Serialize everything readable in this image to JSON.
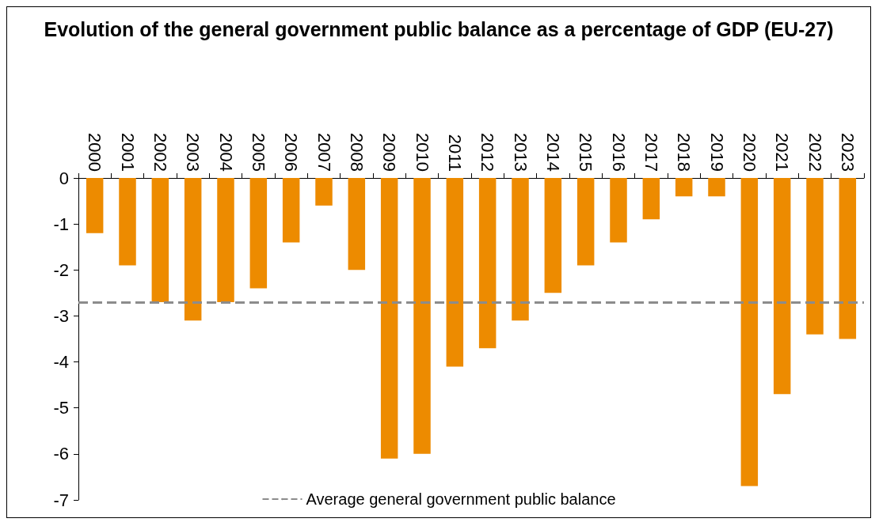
{
  "chart_data": {
    "type": "bar",
    "title": "Evolution of the general government public balance as a percentage of GDP (EU-27)",
    "categories": [
      "2000",
      "2001",
      "2002",
      "2003",
      "2004",
      "2005",
      "2006",
      "2007",
      "2008",
      "2009",
      "2010",
      "2011",
      "2012",
      "2013",
      "2014",
      "2015",
      "2016",
      "2017",
      "2018",
      "2019",
      "2020",
      "2021",
      "2022",
      "2023"
    ],
    "values": [
      -1.2,
      -1.9,
      -2.7,
      -3.1,
      -2.7,
      -2.4,
      -1.4,
      -0.6,
      -2.0,
      -6.1,
      -6.0,
      -4.1,
      -3.7,
      -3.1,
      -2.5,
      -1.9,
      -1.4,
      -0.9,
      -0.4,
      -0.4,
      -6.7,
      -4.7,
      -3.4,
      -3.5
    ],
    "color": "#ed8b00",
    "ylim": [
      -7,
      0
    ],
    "yticks": [
      -7,
      -6,
      -5,
      -4,
      -3,
      -2,
      -1,
      0
    ],
    "ref_lines": [
      {
        "axis": "y",
        "value": -2.7,
        "label": "Average general government public balance",
        "color": "#8c8c8c",
        "line_style": "dashed"
      }
    ],
    "legend": "bottom"
  }
}
